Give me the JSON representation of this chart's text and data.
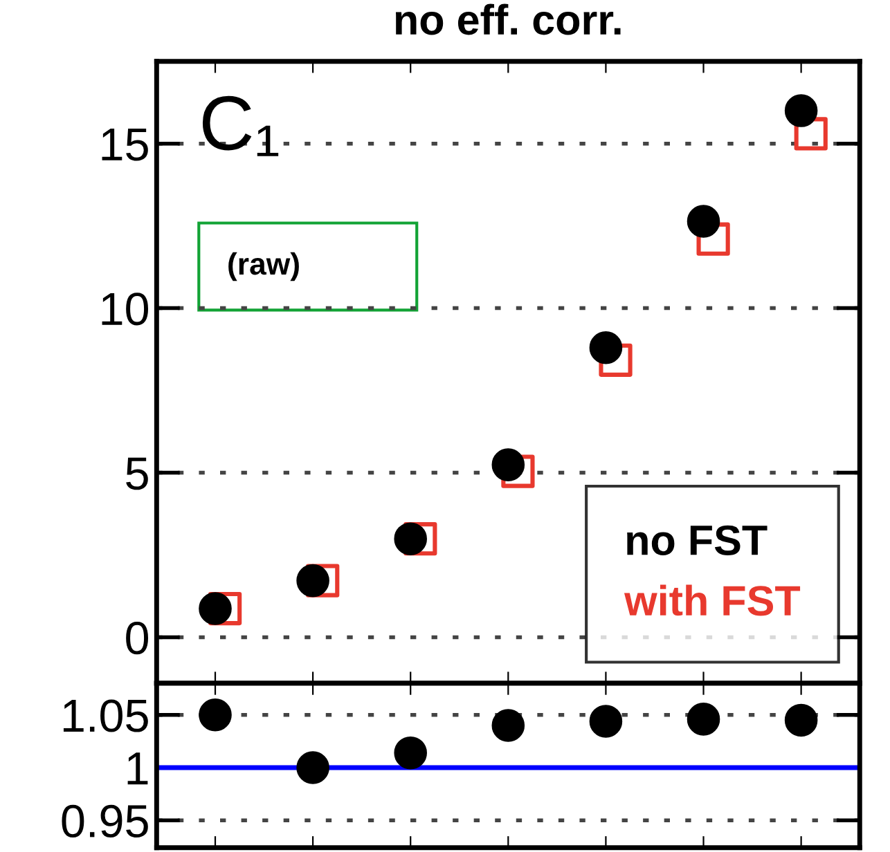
{
  "chart_data": [
    {
      "type": "scatter",
      "title": "no eff. corr.",
      "categories": [
        null,
        null,
        null,
        null,
        null,
        null,
        null
      ],
      "ylim": [
        -1.4,
        17.5
      ],
      "yticks": [
        0,
        5,
        10,
        15
      ],
      "grid": "y",
      "tick_labels": "y",
      "legend": "bottom right",
      "annotations": [
        "C₁",
        "(raw)"
      ],
      "series": [
        {
          "name": "no FST",
          "color": "#000000",
          "marker": "circle",
          "values": [
            0.87,
            1.72,
            2.99,
            5.24,
            8.8,
            12.64,
            16.0
          ]
        },
        {
          "name": "with FST",
          "color": "#e8392e",
          "marker": "square",
          "values": [
            0.87,
            1.72,
            2.99,
            5.04,
            8.42,
            12.1,
            15.3
          ]
        }
      ]
    },
    {
      "type": "scatter",
      "categories": [
        null,
        null,
        null,
        null,
        null,
        null,
        null
      ],
      "ylim": [
        0.924,
        1.08
      ],
      "yticks": [
        0.95,
        1,
        1.05
      ],
      "grid": "y",
      "tick_labels": "y",
      "ref_lines": [
        {
          "axis": "y",
          "value": 1,
          "color": "#0000ff"
        }
      ],
      "series": [
        {
          "color": "#000000",
          "marker": "circle",
          "values": [
            1.05,
            1.0,
            1.014,
            1.04,
            1.044,
            1.046,
            1.045
          ]
        }
      ]
    }
  ]
}
